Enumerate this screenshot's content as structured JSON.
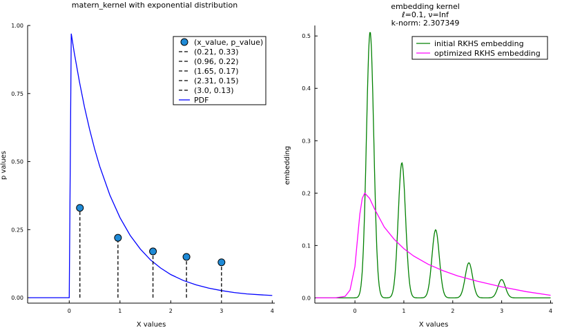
{
  "chart_data": [
    {
      "type": "scatter",
      "title": "matern_kernel with exponential distribution",
      "xlabel": "X values",
      "ylabel": "p values",
      "xlim": [
        -0.82,
        4.05
      ],
      "ylim": [
        -0.02,
        1.0
      ],
      "xticks": [
        0,
        1,
        2,
        3,
        4
      ],
      "xtick_labels": [
        "0",
        "1",
        "2",
        "3",
        "4"
      ],
      "yticks": [
        0.0,
        0.25,
        0.5,
        0.75,
        1.0
      ],
      "ytick_labels": [
        "0.00",
        "0.25",
        "0.50",
        "0.75",
        "1.00"
      ],
      "grid": false,
      "legend_position": "top-right",
      "colors": {
        "points": "#1f8ad6",
        "pdf": "#0000ff",
        "stems": "#000000"
      },
      "points": {
        "name": "(x_value, p_value)",
        "x": [
          0.21,
          0.96,
          1.65,
          2.31,
          3.0
        ],
        "y": [
          0.33,
          0.22,
          0.17,
          0.15,
          0.13
        ]
      },
      "stems": [
        {
          "name": "(0.21, 0.33)",
          "x": 0.21,
          "y": 0.33
        },
        {
          "name": "(0.96, 0.22)",
          "x": 0.96,
          "y": 0.22
        },
        {
          "name": "(1.65, 0.17)",
          "x": 1.65,
          "y": 0.17
        },
        {
          "name": "(2.31, 0.15)",
          "x": 2.31,
          "y": 0.15
        },
        {
          "name": "(3.0, 0.13)",
          "x": 3.0,
          "y": 0.13
        }
      ],
      "pdf": {
        "name": "PDF",
        "x": [
          -0.8,
          -0.4,
          0.0,
          0.04,
          0.1,
          0.2,
          0.3,
          0.4,
          0.5,
          0.6,
          0.8,
          1.0,
          1.2,
          1.4,
          1.6,
          1.8,
          2.0,
          2.25,
          2.5,
          2.75,
          3.0,
          3.25,
          3.5,
          3.75,
          4.0
        ],
        "y": [
          0.0,
          0.0,
          0.0,
          0.97,
          0.899,
          0.794,
          0.701,
          0.619,
          0.547,
          0.483,
          0.377,
          0.294,
          0.229,
          0.179,
          0.139,
          0.109,
          0.085,
          0.063,
          0.047,
          0.035,
          0.026,
          0.019,
          0.014,
          0.011,
          0.008
        ]
      }
    },
    {
      "type": "line",
      "title": "embedding kernel",
      "subtitle_lines": [
        "ℓ=0.1, ν=Inf",
        "k-norm: 2.307349"
      ],
      "xlabel": "X values",
      "ylabel": "embedding",
      "xlim": [
        -0.82,
        4.05
      ],
      "ylim": [
        -0.01,
        0.52
      ],
      "xticks": [
        0,
        1,
        2,
        3,
        4
      ],
      "xtick_labels": [
        "0",
        "1",
        "2",
        "3",
        "4"
      ],
      "yticks": [
        0.0,
        0.1,
        0.2,
        0.3,
        0.4,
        0.5
      ],
      "ytick_labels": [
        "0.0",
        "0.1",
        "0.2",
        "0.3",
        "0.4",
        "0.5"
      ],
      "grid": false,
      "legend_position": "top-right",
      "series": [
        {
          "name": "initial RKHS embedding",
          "color": "#008000",
          "peaks": [
            [
              0.31,
              0.508
            ],
            [
              0.96,
              0.258
            ],
            [
              1.65,
              0.13
            ],
            [
              2.33,
              0.067
            ],
            [
              3.0,
              0.035
            ]
          ],
          "width": 0.075
        },
        {
          "name": "optimized RKHS embedding",
          "color": "#ff00ff",
          "x": [
            -0.8,
            -0.4,
            -0.2,
            -0.1,
            0.0,
            0.05,
            0.1,
            0.15,
            0.2,
            0.3,
            0.4,
            0.6,
            0.8,
            1.0,
            1.2,
            1.5,
            1.8,
            2.1,
            2.5,
            3.0,
            3.5,
            4.0
          ],
          "y": [
            0.0,
            0.0,
            0.003,
            0.015,
            0.06,
            0.11,
            0.16,
            0.19,
            0.2,
            0.19,
            0.17,
            0.135,
            0.112,
            0.094,
            0.08,
            0.064,
            0.052,
            0.042,
            0.032,
            0.021,
            0.012,
            0.005
          ]
        }
      ]
    }
  ]
}
